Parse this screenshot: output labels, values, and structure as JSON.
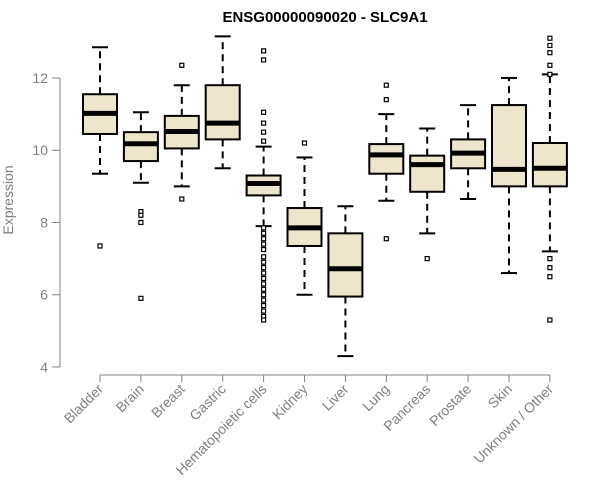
{
  "chart_data": {
    "type": "boxplot",
    "title": "ENSG00000090020 - SLC9A1",
    "ylabel": "Expression",
    "xlabel": "",
    "ylim": [
      4,
      13.3
    ],
    "yticks": [
      4,
      6,
      8,
      10,
      12
    ],
    "box_fill": "#ede6cc",
    "categories": [
      "Bladder",
      "Brain",
      "Breast",
      "Gastric",
      "Hematopoietic cells",
      "Kidney",
      "Liver",
      "Lung",
      "Pancreas",
      "Prostate",
      "Skin",
      "Unknown / Other"
    ],
    "boxes": [
      {
        "whisker_low": 9.35,
        "q1": 10.45,
        "median": 11.02,
        "q3": 11.55,
        "whisker_high": 12.85,
        "outliers": [
          7.35
        ]
      },
      {
        "whisker_low": 9.1,
        "q1": 9.7,
        "median": 10.18,
        "q3": 10.5,
        "whisker_high": 11.05,
        "outliers": [
          8.3,
          8.2,
          8.0,
          5.9
        ]
      },
      {
        "whisker_low": 9.0,
        "q1": 10.05,
        "median": 10.52,
        "q3": 10.95,
        "whisker_high": 11.8,
        "outliers": [
          12.35,
          8.65
        ]
      },
      {
        "whisker_low": 9.5,
        "q1": 10.3,
        "median": 10.75,
        "q3": 11.8,
        "whisker_high": 13.15,
        "outliers": []
      },
      {
        "whisker_low": 7.9,
        "q1": 8.75,
        "median": 9.08,
        "q3": 9.3,
        "whisker_high": 10.1,
        "outliers": [
          12.75,
          12.5,
          11.05,
          10.75,
          10.5,
          10.25,
          7.85,
          7.7,
          7.55,
          7.4,
          7.25,
          7.05,
          6.9,
          6.75,
          6.6,
          6.45,
          6.3,
          6.15,
          6.0,
          5.85,
          5.7,
          5.55,
          5.4,
          5.3
        ]
      },
      {
        "whisker_low": 6.0,
        "q1": 7.35,
        "median": 7.85,
        "q3": 8.4,
        "whisker_high": 9.8,
        "outliers": [
          10.2
        ]
      },
      {
        "whisker_low": 4.3,
        "q1": 5.95,
        "median": 6.72,
        "q3": 7.7,
        "whisker_high": 8.45,
        "outliers": []
      },
      {
        "whisker_low": 8.6,
        "q1": 9.35,
        "median": 9.87,
        "q3": 10.17,
        "whisker_high": 11.0,
        "outliers": [
          11.8,
          11.4,
          7.55
        ]
      },
      {
        "whisker_low": 7.7,
        "q1": 8.85,
        "median": 9.6,
        "q3": 9.85,
        "whisker_high": 10.6,
        "outliers": [
          7.0
        ]
      },
      {
        "whisker_low": 8.65,
        "q1": 9.5,
        "median": 9.92,
        "q3": 10.3,
        "whisker_high": 11.25,
        "outliers": []
      },
      {
        "whisker_low": 6.6,
        "q1": 9.0,
        "median": 9.47,
        "q3": 11.25,
        "whisker_high": 12.0,
        "outliers": []
      },
      {
        "whisker_low": 7.2,
        "q1": 9.0,
        "median": 9.5,
        "q3": 10.2,
        "whisker_high": 12.1,
        "outliers": [
          13.1,
          12.9,
          12.7,
          12.35,
          12.1,
          7.0,
          6.75,
          6.5,
          5.3
        ]
      }
    ]
  }
}
